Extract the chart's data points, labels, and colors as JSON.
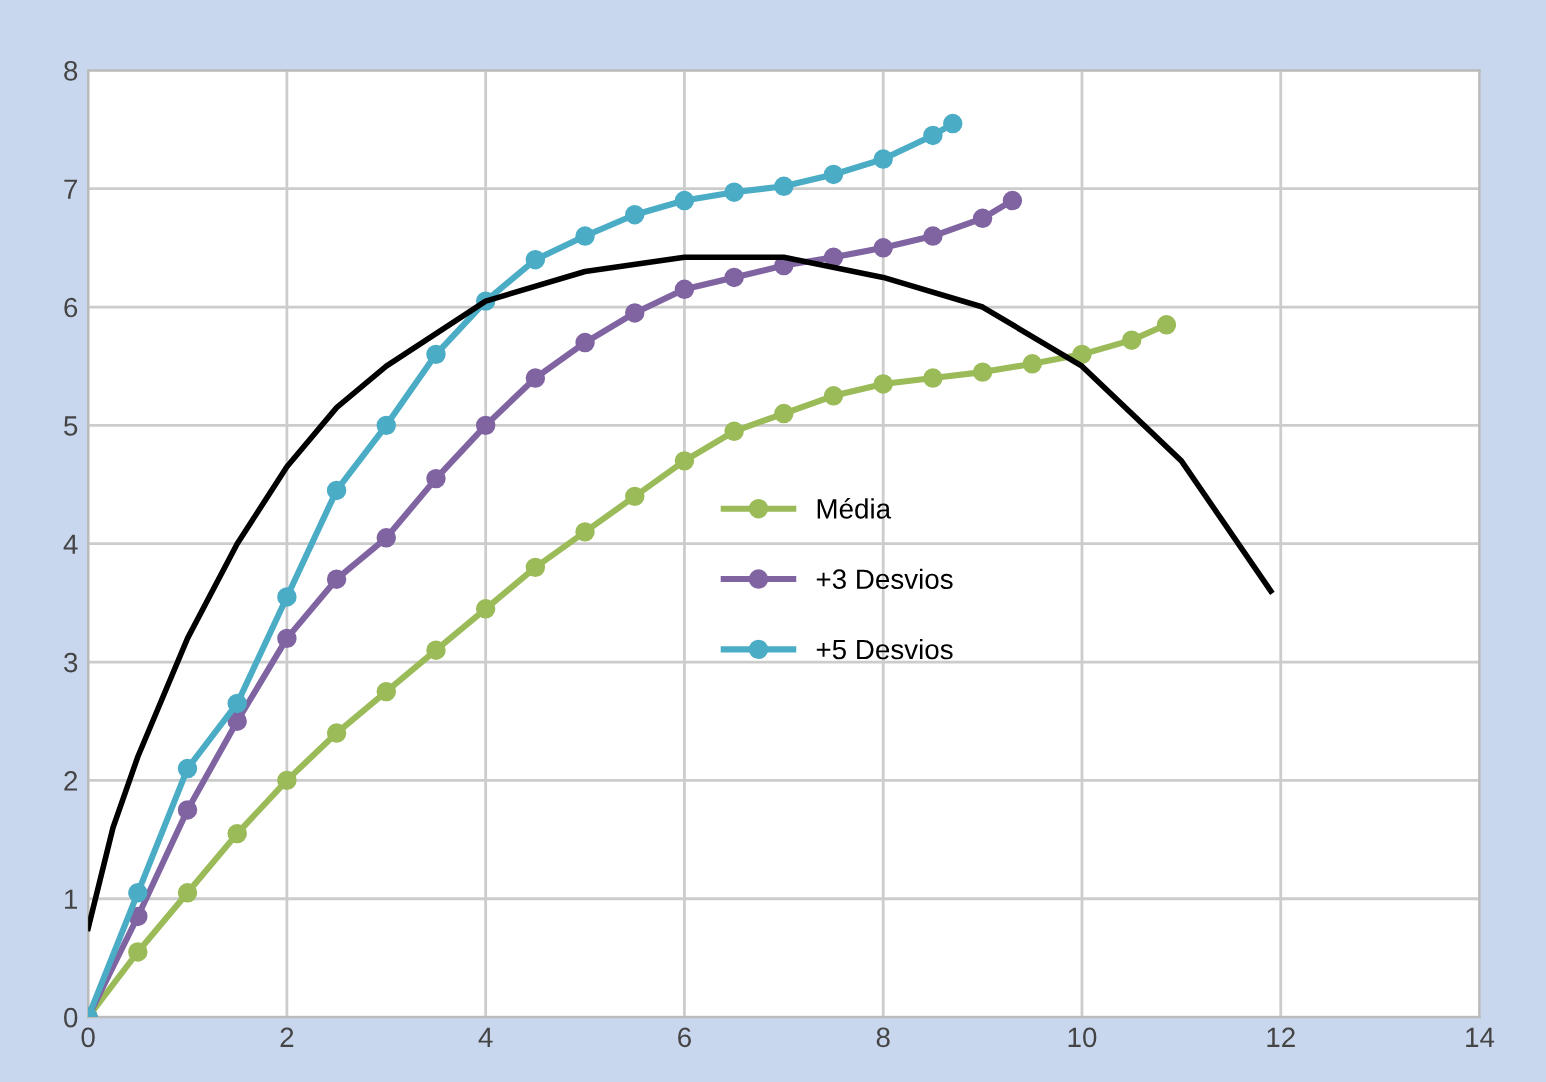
{
  "chart_data": {
    "type": "line",
    "marker": "circle",
    "grid": true,
    "legend": "right",
    "xlim": [
      0,
      14
    ],
    "xticks": [
      0,
      2,
      4,
      6,
      8,
      10,
      12,
      14
    ],
    "ylim": [
      0,
      8
    ],
    "yticks": [
      0,
      1,
      2,
      3,
      4,
      5,
      6,
      7,
      8
    ],
    "series": [
      {
        "name": "Média",
        "color": "#9bbb59",
        "x": [
          0,
          0.5,
          1,
          1.5,
          2,
          2.5,
          3,
          3.5,
          4,
          4.5,
          5,
          5.5,
          6,
          6.5,
          7,
          7.5,
          8,
          8.5,
          9,
          9.5,
          10,
          10.5,
          10.85
        ],
        "values": [
          0,
          0.55,
          1.05,
          1.55,
          2.0,
          2.4,
          2.75,
          3.1,
          3.45,
          3.8,
          4.1,
          4.4,
          4.7,
          4.95,
          5.1,
          5.25,
          5.35,
          5.4,
          5.45,
          5.52,
          5.6,
          5.72,
          5.85
        ]
      },
      {
        "name": "+3 Desvios",
        "color": "#8064a2",
        "x": [
          0,
          0.5,
          1,
          1.5,
          2,
          2.5,
          3,
          3.5,
          4,
          4.5,
          5,
          5.5,
          6,
          6.5,
          7,
          7.5,
          8,
          8.5,
          9,
          9.3
        ],
        "values": [
          0,
          0.85,
          1.75,
          2.5,
          3.2,
          3.7,
          4.05,
          4.55,
          5.0,
          5.4,
          5.7,
          5.95,
          6.15,
          6.25,
          6.35,
          6.42,
          6.5,
          6.6,
          6.75,
          6.9
        ]
      },
      {
        "name": "+5 Desvios",
        "color": "#4bacc6",
        "x": [
          0,
          0.5,
          1,
          1.5,
          2,
          2.5,
          3,
          3.5,
          4,
          4.5,
          5,
          5.5,
          6,
          6.5,
          7,
          7.5,
          8,
          8.5,
          8.7
        ],
        "values": [
          0,
          1.05,
          2.1,
          2.65,
          3.55,
          4.45,
          5.0,
          5.6,
          6.05,
          6.4,
          6.6,
          6.78,
          6.9,
          6.97,
          7.02,
          7.12,
          7.25,
          7.45,
          7.55
        ]
      },
      {
        "color": "#000000",
        "marker": "none",
        "x": [
          0,
          0.25,
          0.5,
          1,
          1.5,
          2,
          2.5,
          3,
          4,
          5,
          6,
          7,
          8,
          9,
          10,
          11,
          11.9
        ],
        "values": [
          0.75,
          1.6,
          2.2,
          3.2,
          4.0,
          4.65,
          5.15,
          5.5,
          6.05,
          6.3,
          6.42,
          6.42,
          6.25,
          6.0,
          5.5,
          4.7,
          3.6
        ]
      }
    ]
  }
}
